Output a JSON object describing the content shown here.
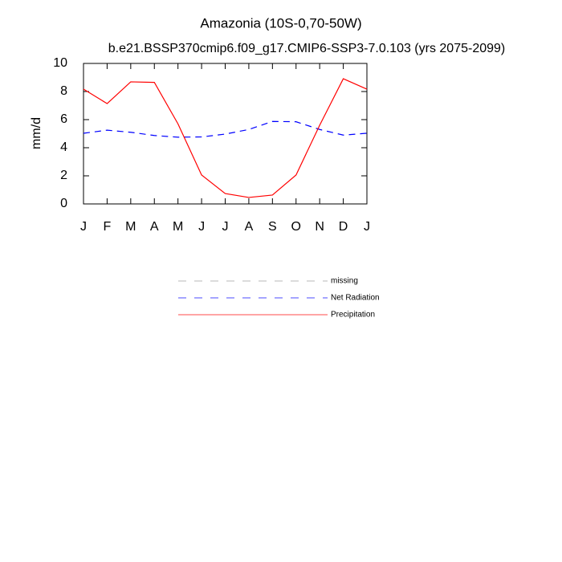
{
  "chart_data": {
    "type": "line",
    "title": "Amazonia (10S-0,70-50W)",
    "subtitle": "b.e21.BSSP370cmip6.f09_g17.CMIP6-SSP3-7.0.103 (yrs 2075-2099)",
    "y_label": "mm/d",
    "categories": [
      "J",
      "F",
      "M",
      "A",
      "M",
      "J",
      "J",
      "A",
      "S",
      "O",
      "N",
      "D",
      "J"
    ],
    "ylim": [
      0,
      10
    ],
    "yticks": [
      0,
      2,
      4,
      6,
      8,
      10
    ],
    "series": [
      {
        "name": "missing",
        "color": "#999999",
        "dash": true,
        "values": [
          null,
          null,
          null,
          null,
          null,
          null,
          null,
          null,
          null,
          null,
          null,
          null,
          null
        ]
      },
      {
        "name": "Net Radiation",
        "color": "#0000ff",
        "dash": true,
        "values": [
          5.03,
          5.25,
          5.1,
          4.87,
          4.75,
          4.77,
          4.97,
          5.3,
          5.87,
          5.85,
          5.3,
          4.9,
          5.03
        ]
      },
      {
        "name": "Precipitation",
        "color": "#ff0000",
        "dash": false,
        "values": [
          8.17,
          7.14,
          8.69,
          8.65,
          5.7,
          2.06,
          0.74,
          0.46,
          0.63,
          2.06,
          5.6,
          8.91,
          8.17
        ]
      }
    ]
  }
}
